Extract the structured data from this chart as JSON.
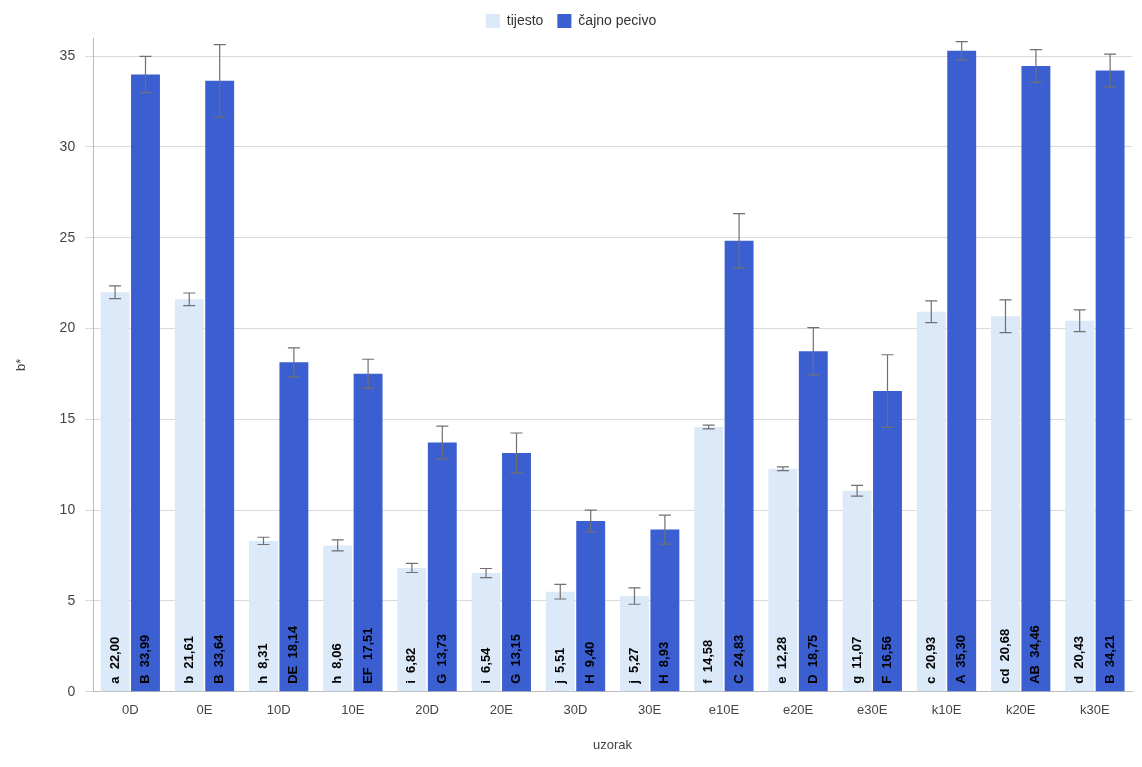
{
  "chart_data": {
    "type": "bar",
    "xlabel": "uzorak",
    "ylabel": "b*",
    "categories": [
      "0D",
      "0E",
      "10D",
      "10E",
      "20D",
      "20E",
      "30D",
      "30E",
      "e10E",
      "e20E",
      "e30E",
      "k10E",
      "k20E",
      "k30E"
    ],
    "series": [
      {
        "name": "tijesto",
        "color": "#dce9f8",
        "values": [
          22.0,
          21.61,
          8.31,
          8.06,
          6.82,
          6.54,
          5.51,
          5.27,
          14.58,
          12.28,
          11.07,
          20.93,
          20.68,
          20.43
        ],
        "errors": [
          0.35,
          0.35,
          0.2,
          0.3,
          0.25,
          0.25,
          0.4,
          0.45,
          0.1,
          0.1,
          0.3,
          0.6,
          0.9,
          0.6
        ],
        "value_labels": [
          "a  22,00",
          "b  21,61",
          "h  8,31",
          "h  8,06",
          "i  6,82",
          "i  6,54",
          "j  5,51",
          "j  5,27",
          "f  14,58",
          "e  12,28",
          "g  11,07",
          "c  20,93",
          "cd  20,68",
          "d  20,43"
        ]
      },
      {
        "name": "čajno pecivo",
        "color": "#3b5fd0",
        "values": [
          33.99,
          33.64,
          18.14,
          17.51,
          13.73,
          13.15,
          9.4,
          8.93,
          24.83,
          18.75,
          16.56,
          35.3,
          34.46,
          34.21
        ],
        "errors": [
          1.0,
          2.0,
          0.8,
          0.8,
          0.9,
          1.1,
          0.6,
          0.8,
          1.5,
          1.3,
          2.0,
          0.5,
          0.9,
          0.9
        ],
        "value_labels": [
          "B  33,99",
          "B  33,64",
          "DE  18,14",
          "EF  17,51",
          "G  13,73",
          "G  13,15",
          "H  9,40",
          "H  8,93",
          "C  24,83",
          "D  18,75",
          "F  16,56",
          "A  35,30",
          "AB  34,46",
          "B  34,21"
        ]
      }
    ],
    "ylim": [
      0,
      36
    ],
    "yticks": [
      0,
      5,
      10,
      15,
      20,
      25,
      30,
      35
    ],
    "grid": "y",
    "legend": "top"
  }
}
